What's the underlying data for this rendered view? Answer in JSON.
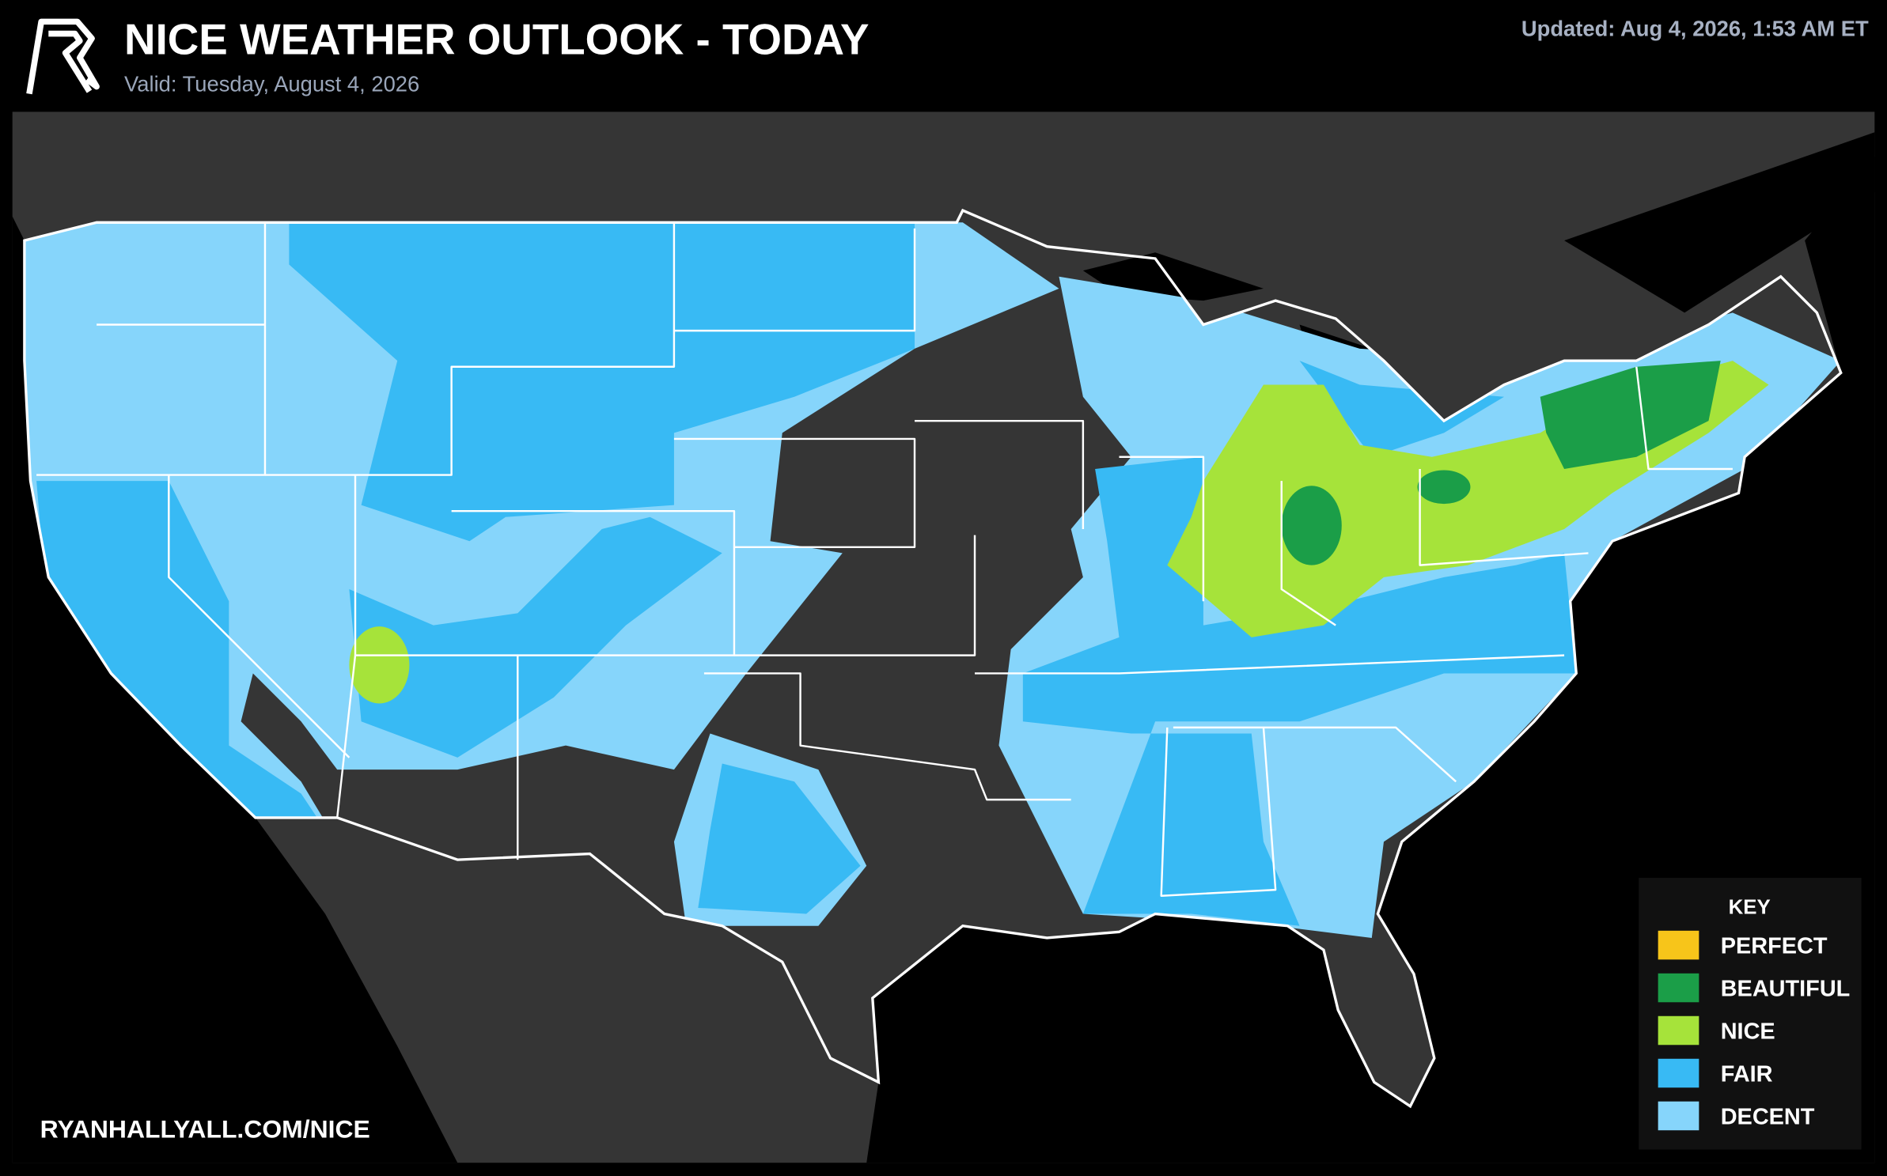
{
  "header": {
    "title": "NICE WEATHER OUTLOOK - TODAY",
    "subtitle": "Valid: Tuesday, August 4, 2026",
    "updated": "Updated: Aug 4, 2026, 1:53 AM ET"
  },
  "legend": {
    "title": "KEY",
    "items": [
      {
        "label": "PERFECT",
        "color": "#f7c51a"
      },
      {
        "label": "BEAUTIFUL",
        "color": "#1b9e48"
      },
      {
        "label": "NICE",
        "color": "#a6e33a"
      },
      {
        "label": "FAIR",
        "color": "#38baf4"
      },
      {
        "label": "DECENT",
        "color": "#86d5fb"
      }
    ]
  },
  "footer": {
    "url": "RYANHALLYALL.COM/NICE"
  }
}
